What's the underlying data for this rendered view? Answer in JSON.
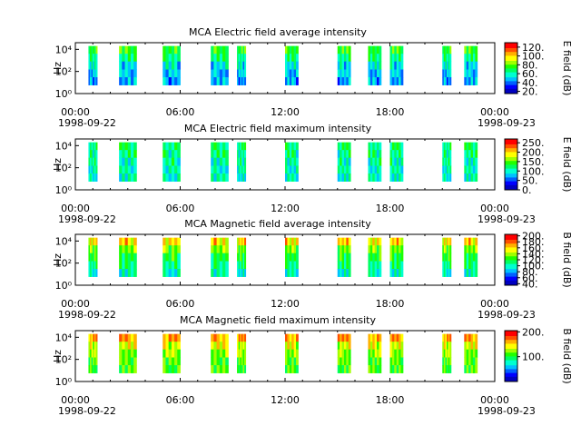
{
  "colors": {
    "colormap": [
      "#0000c0",
      "#0000ff",
      "#0060ff",
      "#00c0ff",
      "#00ffd0",
      "#00ff60",
      "#20ff00",
      "#a0ff00",
      "#ffff00",
      "#ffb000",
      "#ff5000",
      "#ff0000"
    ],
    "axis": "#000000",
    "background": "#ffffff"
  },
  "chart_data": [
    {
      "type": "heatmap",
      "title": "MCA  Electric field average intensity",
      "ylabel": "Hz",
      "y_scale": "log",
      "ylim": [
        1,
        40000
      ],
      "y_ticks": [
        "10⁰",
        "10²",
        "10⁴"
      ],
      "x_ticks": [
        "00:00",
        "06:00",
        "12:00",
        "18:00",
        "00:00"
      ],
      "x_dates": [
        "1998-09-22",
        "",
        "",
        "",
        "1998-09-23"
      ],
      "colorbar_label": "E field (dB)",
      "colorbar_range": [
        15,
        130
      ],
      "colorbar_ticks": [
        {
          "value": 20,
          "label": "20."
        },
        {
          "value": 40,
          "label": "40."
        },
        {
          "value": 60,
          "label": "60."
        },
        {
          "value": 80,
          "label": "80."
        },
        {
          "value": 100,
          "label": "100."
        },
        {
          "value": 120,
          "label": "120."
        }
      ],
      "data_segments": [
        [
          0.75,
          1.25
        ],
        [
          2.5,
          3.5
        ],
        [
          5.0,
          6.0
        ],
        [
          7.75,
          8.75
        ],
        [
          9.25,
          9.75
        ],
        [
          12.0,
          12.75
        ],
        [
          15.0,
          15.75
        ],
        [
          16.75,
          17.5
        ],
        [
          18.0,
          18.75
        ],
        [
          21.0,
          21.5
        ],
        [
          22.25,
          23.0
        ]
      ],
      "intensity_profile": [
        75,
        65,
        55,
        50,
        45
      ]
    },
    {
      "type": "heatmap",
      "title": "MCA  Electric field maximum intensity",
      "ylabel": "Hz",
      "y_scale": "log",
      "ylim": [
        1,
        40000
      ],
      "y_ticks": [
        "10⁰",
        "10²",
        "10⁴"
      ],
      "x_ticks": [
        "00:00",
        "06:00",
        "12:00",
        "18:00",
        "00:00"
      ],
      "x_dates": [
        "1998-09-22",
        "",
        "",
        "",
        "1998-09-23"
      ],
      "colorbar_label": "E field (dB)",
      "colorbar_range": [
        0,
        270
      ],
      "colorbar_ticks": [
        {
          "value": 0,
          "label": "0."
        },
        {
          "value": 50,
          "label": "50."
        },
        {
          "value": 100,
          "label": "100."
        },
        {
          "value": 150,
          "label": "150."
        },
        {
          "value": 200,
          "label": "200."
        },
        {
          "value": 250,
          "label": "250."
        }
      ],
      "data_segments": [
        [
          0.75,
          1.25
        ],
        [
          2.5,
          3.5
        ],
        [
          5.0,
          6.0
        ],
        [
          7.75,
          8.75
        ],
        [
          9.25,
          9.75
        ],
        [
          12.0,
          12.75
        ],
        [
          15.0,
          15.75
        ],
        [
          16.75,
          17.5
        ],
        [
          18.0,
          18.75
        ],
        [
          21.0,
          21.5
        ],
        [
          22.25,
          23.0
        ]
      ],
      "intensity_profile": [
        120,
        115,
        110,
        105,
        100
      ]
    },
    {
      "type": "heatmap",
      "title": "MCA  Magnetic field average intensity",
      "ylabel": "Hz",
      "y_scale": "log",
      "ylim": [
        1,
        40000
      ],
      "y_ticks": [
        "10⁰",
        "10²",
        "10⁴"
      ],
      "x_ticks": [
        "00:00",
        "06:00",
        "12:00",
        "18:00",
        "00:00"
      ],
      "x_dates": [
        "1998-09-22",
        "",
        "",
        "",
        "1998-09-23"
      ],
      "colorbar_label": "B field (dB)",
      "colorbar_range": [
        35,
        205
      ],
      "colorbar_ticks": [
        {
          "value": 40,
          "label": "40."
        },
        {
          "value": 60,
          "label": "60."
        },
        {
          "value": 80,
          "label": "80."
        },
        {
          "value": 100,
          "label": "100."
        },
        {
          "value": 120,
          "label": "120."
        },
        {
          "value": 140,
          "label": "140."
        },
        {
          "value": 160,
          "label": "160."
        },
        {
          "value": 180,
          "label": "180."
        },
        {
          "value": 200,
          "label": "200."
        }
      ],
      "data_segments": [
        [
          0.75,
          1.25
        ],
        [
          2.5,
          3.5
        ],
        [
          5.0,
          6.0
        ],
        [
          7.75,
          8.75
        ],
        [
          9.25,
          9.75
        ],
        [
          12.0,
          12.75
        ],
        [
          15.0,
          15.75
        ],
        [
          16.75,
          17.5
        ],
        [
          18.0,
          18.75
        ],
        [
          21.0,
          21.5
        ],
        [
          22.25,
          23.0
        ]
      ],
      "intensity_profile": [
        160,
        135,
        120,
        110,
        100
      ]
    },
    {
      "type": "heatmap",
      "title": "MCA  Magnetic field maximum intensity",
      "ylabel": "Hz",
      "y_scale": "log",
      "ylim": [
        1,
        40000
      ],
      "y_ticks": [
        "10⁰",
        "10²",
        "10⁴"
      ],
      "x_ticks": [
        "00:00",
        "06:00",
        "12:00",
        "18:00",
        "00:00"
      ],
      "x_dates": [
        "1998-09-22",
        "",
        "",
        "",
        "1998-09-23"
      ],
      "colorbar_label": "B field (dB)",
      "colorbar_range": [
        0,
        205
      ],
      "colorbar_ticks": [
        {
          "value": 100,
          "label": "100."
        },
        {
          "value": 200,
          "label": "200."
        }
      ],
      "data_segments": [
        [
          0.75,
          1.25
        ],
        [
          2.5,
          3.5
        ],
        [
          5.0,
          6.0
        ],
        [
          7.75,
          8.75
        ],
        [
          9.25,
          9.75
        ],
        [
          12.0,
          12.75
        ],
        [
          15.0,
          15.75
        ],
        [
          16.75,
          17.5
        ],
        [
          18.0,
          18.75
        ],
        [
          21.0,
          21.5
        ],
        [
          22.25,
          23.0
        ]
      ],
      "intensity_profile": [
        165,
        140,
        125,
        115,
        110
      ]
    }
  ]
}
